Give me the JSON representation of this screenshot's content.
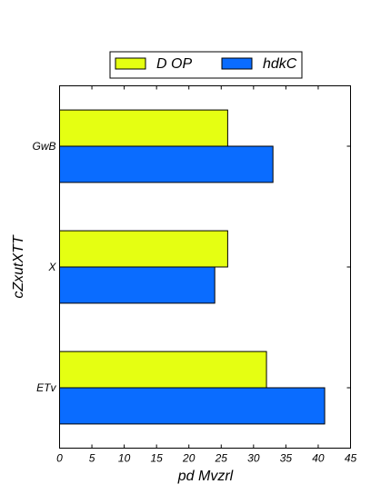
{
  "chart_data": {
    "type": "bar",
    "orientation": "horizontal",
    "categories": [
      "ETv",
      "X",
      "GwB"
    ],
    "series": [
      {
        "name": "D OP",
        "color": "#e5ff12",
        "values": [
          32,
          26,
          26
        ]
      },
      {
        "name": "hdkC",
        "color": "#0a6cff",
        "values": [
          41,
          24,
          33
        ]
      }
    ],
    "xlabel": "pd Mvzrl",
    "ylabel": "cZxutXTT",
    "xlim": [
      0,
      45
    ],
    "xticks": [
      0,
      5,
      10,
      15,
      20,
      25,
      30,
      35,
      40,
      45
    ],
    "grid": false,
    "legend_position": "top-center"
  }
}
